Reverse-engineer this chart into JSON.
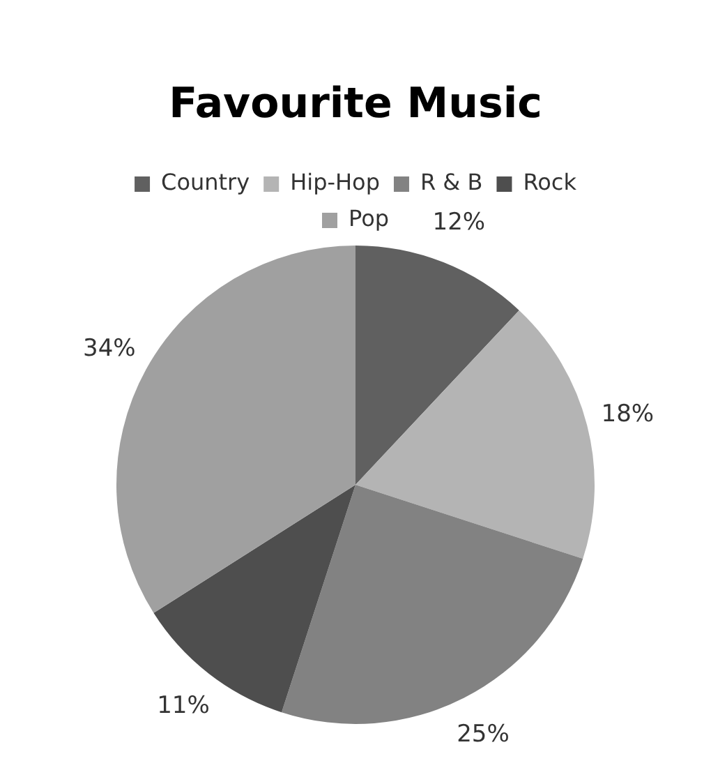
{
  "chart_data": {
    "type": "pie",
    "title": "Favourite Music",
    "categories": [
      "Country",
      "Hip-Hop",
      "R & B",
      "Rock",
      "Pop"
    ],
    "values": [
      12,
      18,
      25,
      11,
      34
    ],
    "value_labels": [
      "12%",
      "18%",
      "25%",
      "11%",
      "34%"
    ],
    "colors": [
      "#606060",
      "#b4b4b4",
      "#828282",
      "#4e4e4e",
      "#a0a0a0"
    ],
    "legend": "top"
  }
}
